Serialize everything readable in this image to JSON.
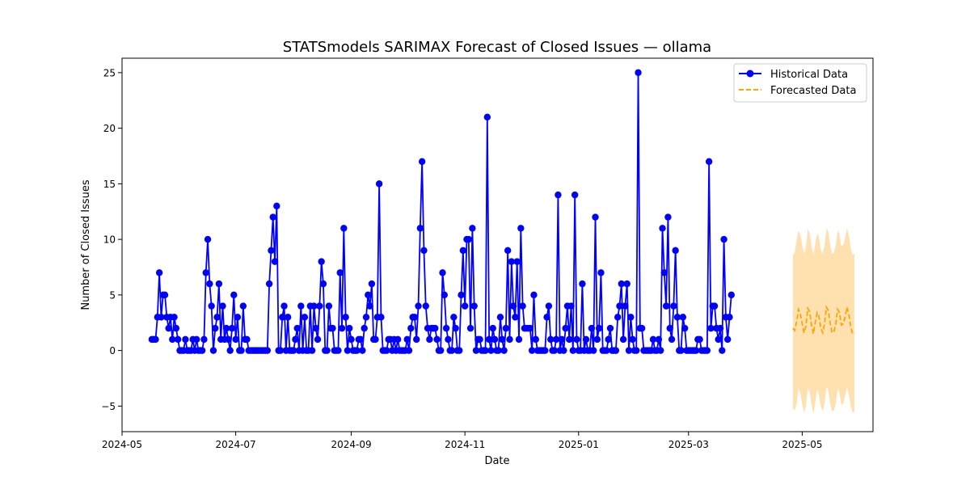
{
  "chart_data": {
    "type": "line",
    "title": "STATSmodels SARIMAX Forecast of Closed Issues — ollama",
    "xlabel": "Date",
    "ylabel": "Number of Closed Issues",
    "xlim": [
      "2024-05-01",
      "2025-06-08"
    ],
    "ylim": [
      -7.3,
      26.3
    ],
    "grid": false,
    "legend_position": "top-right",
    "x_ticks": [
      "2024-05",
      "2024-07",
      "2024-09",
      "2024-11",
      "2025-01",
      "2025-03",
      "2025-05"
    ],
    "y_ticks": [
      -5,
      0,
      5,
      10,
      15,
      20,
      25
    ],
    "colors": {
      "historical": "#0000ff",
      "forecast": "#ffa500",
      "confidence_band": "#ffdea6"
    },
    "series": [
      {
        "name": "Historical Data",
        "style": "solid-line-with-circle-markers",
        "start_date": "2024-05-17",
        "values": [
          1,
          1,
          1,
          3,
          7,
          3,
          5,
          5,
          3,
          2,
          3,
          1,
          3,
          2,
          1,
          0,
          0,
          0,
          1,
          0,
          0,
          0,
          1,
          0,
          1,
          0,
          0,
          0,
          1,
          7,
          10,
          6,
          4,
          0,
          2,
          3,
          6,
          1,
          4,
          1,
          2,
          1,
          0,
          2,
          5,
          1,
          3,
          0,
          0,
          4,
          1,
          1,
          0,
          0,
          0,
          0,
          0,
          0,
          0,
          0,
          0,
          0,
          0,
          6,
          9,
          12,
          8,
          13,
          0,
          0,
          3,
          4,
          0,
          3,
          0,
          0,
          0,
          1,
          2,
          0,
          4,
          0,
          3,
          0,
          0,
          4,
          0,
          4,
          2,
          1,
          4,
          8,
          6,
          0,
          0,
          4,
          2,
          2,
          0,
          0,
          0,
          7,
          2,
          11,
          3,
          0,
          2,
          1,
          0,
          0,
          0,
          1,
          1,
          0,
          2,
          3,
          5,
          4,
          6,
          1,
          1,
          3,
          15,
          3,
          0,
          0,
          0,
          1,
          1,
          0,
          1,
          0,
          1,
          0,
          0,
          0,
          0,
          1,
          0,
          2,
          3,
          3,
          1,
          4,
          11,
          17,
          9,
          4,
          2,
          1,
          2,
          2,
          2,
          1,
          0,
          0,
          7,
          5,
          2,
          1,
          0,
          0,
          3,
          2,
          0,
          0,
          5,
          9,
          4,
          10,
          10,
          2,
          11,
          4,
          0,
          1,
          1,
          0,
          0,
          0,
          21,
          1,
          0,
          2,
          1,
          0,
          0,
          3,
          1,
          0,
          2,
          9,
          1,
          8,
          4,
          3,
          8,
          1,
          11,
          4,
          2,
          2,
          2,
          2,
          0,
          5,
          1,
          0,
          0,
          0,
          0,
          0,
          3,
          4,
          1,
          0,
          0,
          1,
          14,
          0,
          1,
          0,
          2,
          4,
          1,
          4,
          0,
          14,
          1,
          0,
          0,
          6,
          0,
          1,
          0,
          0,
          2,
          0,
          12,
          1,
          2,
          7,
          0,
          0,
          0,
          1,
          2,
          0,
          0,
          0,
          3,
          4,
          6,
          1,
          4,
          6,
          0,
          3,
          1,
          0,
          0,
          25,
          2,
          2,
          0,
          0,
          0,
          0,
          0,
          1,
          0,
          0,
          1,
          0,
          11,
          7,
          4,
          12,
          2,
          1,
          4,
          9,
          3,
          0,
          0,
          3,
          2,
          0,
          0,
          0,
          0,
          0,
          0,
          1,
          1,
          0,
          0,
          0,
          0,
          17,
          2,
          4,
          4,
          2,
          1,
          2,
          0,
          10,
          3,
          1,
          3,
          5
        ]
      },
      {
        "name": "Forecasted Data",
        "style": "dashed-line",
        "start_date": "2025-04-26",
        "values": [
          2.0,
          1.8,
          2.6,
          3.7,
          3.3,
          2.4,
          1.6,
          2.2,
          3.8,
          3.5,
          2.3,
          1.5,
          2.5,
          3.4,
          3.1,
          2.0,
          1.6,
          2.4,
          3.9,
          3.6,
          2.5,
          1.6,
          1.7,
          2.3,
          3.7,
          3.4,
          2.3,
          2.4,
          3.0,
          3.9,
          3.3,
          2.2,
          1.5,
          1.6
        ],
        "ci_lower": [
          -5.2,
          -5.4,
          -4.8,
          -3.4,
          -3.9,
          -4.8,
          -5.6,
          -5.0,
          -3.4,
          -3.7,
          -4.9,
          -5.7,
          -4.7,
          -3.5,
          -4.0,
          -5.0,
          -5.5,
          -4.7,
          -3.3,
          -3.6,
          -4.7,
          -5.5,
          -5.4,
          -4.8,
          -3.4,
          -3.8,
          -4.9,
          -4.8,
          -4.1,
          -3.3,
          -3.9,
          -5.0,
          -5.6,
          -5.5
        ],
        "ci_upper": [
          8.6,
          8.8,
          9.9,
          10.8,
          10.4,
          9.5,
          8.7,
          9.3,
          10.9,
          10.6,
          9.4,
          8.6,
          9.6,
          10.5,
          10.2,
          9.1,
          8.7,
          9.5,
          11.0,
          10.7,
          9.6,
          8.7,
          8.8,
          9.4,
          10.8,
          10.5,
          9.4,
          9.5,
          10.1,
          11.0,
          10.4,
          9.3,
          8.6,
          8.7
        ]
      }
    ]
  }
}
